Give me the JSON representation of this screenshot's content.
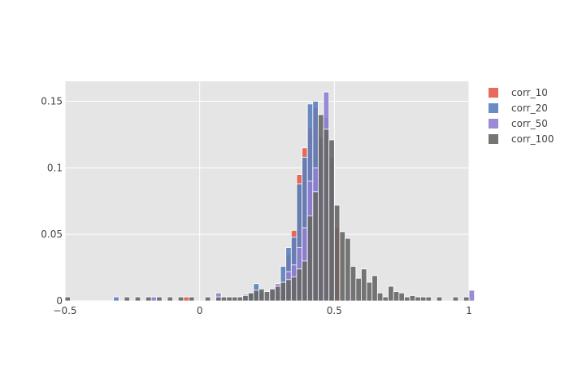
{
  "chart_data": {
    "type": "histogram",
    "barmode": "overlay",
    "grid": true,
    "legend_position": "top-right",
    "xlim": [
      -0.5,
      1.0
    ],
    "ylim": [
      0,
      0.165
    ],
    "x_ticks": [
      -0.5,
      0,
      0.5,
      1
    ],
    "x_tick_labels": [
      "−0.5",
      "0",
      "0.5",
      "1"
    ],
    "y_ticks": [
      0,
      0.05,
      0.1,
      0.15
    ],
    "y_tick_labels": [
      "0",
      "0.05",
      "0.1",
      "0.15"
    ],
    "bin_start": -0.5,
    "bin_width": 0.02,
    "colors": {
      "plot_background": "#e5e5e5",
      "grid": "#ffffff",
      "bar_outline": "#ffffff"
    },
    "series": [
      {
        "name": "corr_10",
        "color": "#e45b4a",
        "bins": [
          [
            -0.06,
            0.003
          ],
          [
            0.3,
            0.012
          ],
          [
            0.32,
            0.035
          ],
          [
            0.34,
            0.053
          ],
          [
            0.36,
            0.095
          ],
          [
            0.38,
            0.115
          ],
          [
            0.4,
            0.13
          ],
          [
            0.42,
            0.145
          ],
          [
            0.44,
            0.118
          ],
          [
            0.46,
            0.1
          ],
          [
            0.48,
            0.08
          ],
          [
            0.5,
            0.055
          ]
        ]
      },
      {
        "name": "corr_20",
        "color": "#5b7fbb",
        "bins": [
          [
            -0.32,
            0.003
          ],
          [
            0.18,
            0.006
          ],
          [
            0.2,
            0.013
          ],
          [
            0.3,
            0.026
          ],
          [
            0.32,
            0.04
          ],
          [
            0.34,
            0.048
          ],
          [
            0.36,
            0.088
          ],
          [
            0.38,
            0.108
          ],
          [
            0.4,
            0.148
          ],
          [
            0.42,
            0.15
          ],
          [
            0.44,
            0.118
          ],
          [
            0.46,
            0.138
          ],
          [
            0.48,
            0.105
          ]
        ]
      },
      {
        "name": "corr_50",
        "color": "#8e7fd0",
        "bins": [
          [
            -0.18,
            0.003
          ],
          [
            0.06,
            0.006
          ],
          [
            0.16,
            0.005
          ],
          [
            0.22,
            0.007
          ],
          [
            0.26,
            0.009
          ],
          [
            0.28,
            0.013
          ],
          [
            0.32,
            0.022
          ],
          [
            0.34,
            0.027
          ],
          [
            0.36,
            0.04
          ],
          [
            0.38,
            0.055
          ],
          [
            0.4,
            0.09
          ],
          [
            0.42,
            0.1
          ],
          [
            0.44,
            0.123
          ],
          [
            0.46,
            0.157
          ],
          [
            0.48,
            0.108
          ],
          [
            1.0,
            0.008
          ]
        ]
      },
      {
        "name": "corr_100",
        "color": "#666666",
        "bins": [
          [
            -0.5,
            0.003
          ],
          [
            -0.28,
            0.003
          ],
          [
            -0.24,
            0.003
          ],
          [
            -0.2,
            0.003
          ],
          [
            -0.16,
            0.003
          ],
          [
            -0.12,
            0.003
          ],
          [
            -0.08,
            0.003
          ],
          [
            -0.04,
            0.003
          ],
          [
            0.02,
            0.003
          ],
          [
            0.06,
            0.003
          ],
          [
            0.08,
            0.003
          ],
          [
            0.1,
            0.003
          ],
          [
            0.12,
            0.003
          ],
          [
            0.14,
            0.003
          ],
          [
            0.16,
            0.004
          ],
          [
            0.18,
            0.006
          ],
          [
            0.2,
            0.008
          ],
          [
            0.22,
            0.009
          ],
          [
            0.24,
            0.007
          ],
          [
            0.26,
            0.009
          ],
          [
            0.28,
            0.011
          ],
          [
            0.3,
            0.014
          ],
          [
            0.32,
            0.016
          ],
          [
            0.34,
            0.018
          ],
          [
            0.36,
            0.024
          ],
          [
            0.38,
            0.03
          ],
          [
            0.4,
            0.064
          ],
          [
            0.42,
            0.082
          ],
          [
            0.44,
            0.14
          ],
          [
            0.46,
            0.129
          ],
          [
            0.48,
            0.121
          ],
          [
            0.5,
            0.072
          ],
          [
            0.52,
            0.052
          ],
          [
            0.54,
            0.047
          ],
          [
            0.56,
            0.026
          ],
          [
            0.58,
            0.017
          ],
          [
            0.6,
            0.024
          ],
          [
            0.62,
            0.014
          ],
          [
            0.64,
            0.019
          ],
          [
            0.66,
            0.006
          ],
          [
            0.68,
            0.003
          ],
          [
            0.7,
            0.011
          ],
          [
            0.72,
            0.007
          ],
          [
            0.74,
            0.006
          ],
          [
            0.76,
            0.003
          ],
          [
            0.78,
            0.004
          ],
          [
            0.8,
            0.003
          ],
          [
            0.82,
            0.003
          ],
          [
            0.84,
            0.003
          ],
          [
            0.88,
            0.003
          ],
          [
            0.94,
            0.003
          ],
          [
            0.98,
            0.003
          ]
        ]
      }
    ]
  }
}
